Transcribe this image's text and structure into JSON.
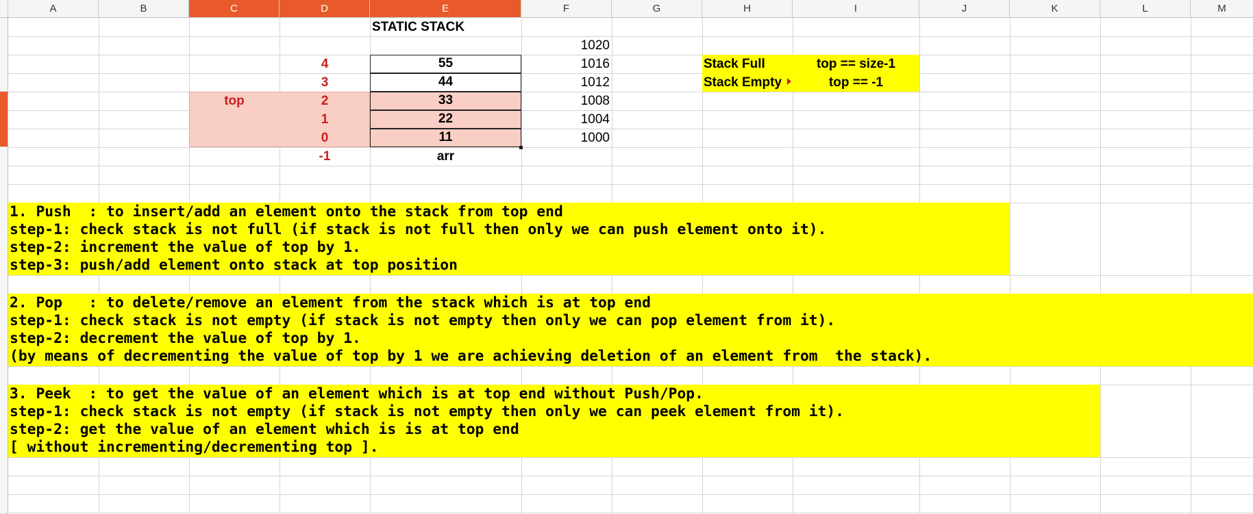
{
  "columns": [
    "A",
    "B",
    "C",
    "D",
    "E",
    "F",
    "G",
    "H",
    "I",
    "J",
    "K",
    "L",
    "M"
  ],
  "title": "STATIC STACK",
  "stack": {
    "indices": [
      "4",
      "3",
      "2",
      "1",
      "0",
      "-1"
    ],
    "values": [
      "55",
      "44",
      "33",
      "22",
      "11"
    ],
    "addresses": [
      "1020",
      "1016",
      "1012",
      "1008",
      "1004",
      "1000"
    ],
    "top_label": "top",
    "array_label": "arr"
  },
  "conditions": {
    "full_label": "Stack Full",
    "full_expr": "top == size-1",
    "empty_label": "Stack Empty",
    "empty_expr": "top == -1"
  },
  "notes": {
    "push": [
      "1. Push  : to insert/add an element onto the stack from top end",
      "step-1: check stack is not full (if stack is not full then only we can push element onto it).",
      "step-2: increment the value of top by 1.",
      "step-3: push/add element onto stack at top position"
    ],
    "pop": [
      "2. Pop   : to delete/remove an element from the stack which is at top end",
      "step-1: check stack is not empty (if stack is not empty then only we can pop element from it).",
      "step-2: decrement the value of top by 1.",
      "(by means of decrementing the value of top by 1 we are achieving deletion of an element from  the stack)."
    ],
    "peek": [
      "3. Peek  : to get the value of an element which is at top end without Push/Pop.",
      "step-1: check stack is not empty (if stack is not empty then only we can peek element from it).",
      "step-2: get the value of an element which is is at top end",
      "[ without incrementing/decrementing top ]."
    ]
  },
  "colors": {
    "selection_header": "#e95a2b",
    "highlight_pink": "#f9cfc5",
    "note_yellow": "#ffff00",
    "index_red": "#c9211e"
  }
}
